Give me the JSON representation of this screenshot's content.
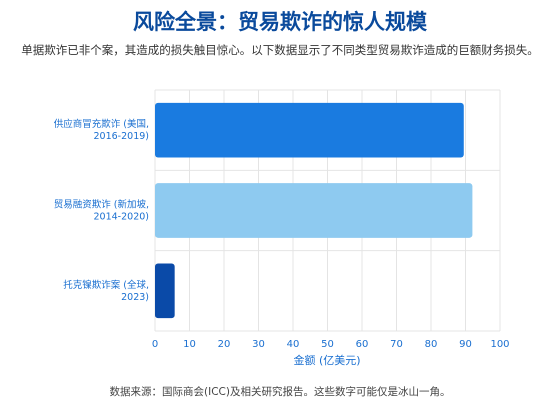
{
  "title": "风险全景：贸易欺诈的惊人规模",
  "subtitle": "单据欺诈已非个案，其造成的损失触目惊心。以下数据显示了不同类型贸易欺诈造成的巨额财务损失。",
  "source": "数据来源：国际商会(ICC)及相关研究报告。这些数字可能仅是冰山一角。",
  "chart_data": {
    "type": "bar",
    "orientation": "horizontal",
    "categories": [
      [
        "供应商冒充欺诈 (美国,",
        "2016-2019)"
      ],
      [
        "贸易融资欺诈 (新加坡,",
        "2014-2020)"
      ],
      [
        "托克镍欺诈案 (全球,",
        "2023)"
      ]
    ],
    "values": [
      89.5,
      92,
      5.7
    ],
    "colors": [
      "#1a7be0",
      "#8ecaf0",
      "#0a4aa8"
    ],
    "xlabel": "金额 (亿美元)",
    "ylabel": "",
    "xlim": [
      0,
      100
    ],
    "xticks": [
      0,
      10,
      20,
      30,
      40,
      50,
      60,
      70,
      80,
      90,
      100
    ],
    "grid": true,
    "tick_color": "#1a6fd0",
    "grid_color": "#e4e4e4"
  }
}
